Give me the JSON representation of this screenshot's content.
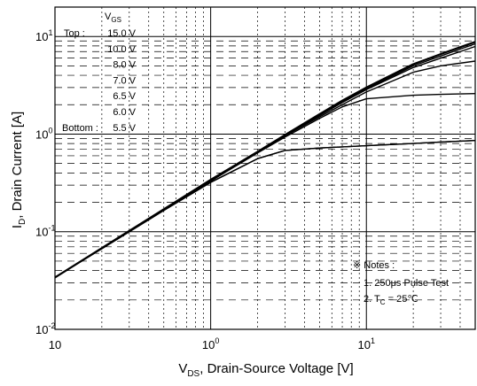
{
  "chart_data": {
    "type": "line",
    "xscale": "log",
    "yscale": "log",
    "xlim": [
      0.1,
      50
    ],
    "ylim": [
      0.01,
      20
    ],
    "grid": true,
    "xlabel": {
      "main": "V",
      "sub": "DS",
      "rest": ", Drain-Source Voltage [V]"
    },
    "ylabel": {
      "main": "I",
      "sub": "D",
      "rest": ", Drain Current [A]"
    },
    "x_ticks": [
      {
        "value": 0.1,
        "base": "10",
        "exp": ""
      },
      {
        "value": 1,
        "base": "10",
        "exp": "0"
      },
      {
        "value": 10,
        "base": "10",
        "exp": "1"
      }
    ],
    "y_ticks": [
      {
        "value": 0.01,
        "base": "10",
        "exp": "-2"
      },
      {
        "value": 0.1,
        "base": "10",
        "exp": "-1"
      },
      {
        "value": 1,
        "base": "10",
        "exp": "0"
      },
      {
        "value": 10,
        "base": "10",
        "exp": "1"
      }
    ],
    "legend": {
      "placement": "top-left",
      "header_main": "V",
      "header_sub": "GS",
      "top_label": "Top :",
      "bottom_label": "Bottom :",
      "entries": [
        "15.0 V",
        "10.0 V",
        "8.0 V",
        "7.0 V",
        "6.5 V",
        "6.0 V",
        "5.5 V"
      ]
    },
    "notes": {
      "title": "※ Notes :",
      "line1": "1. 250μs Pulse Test",
      "line2_prefix": "2. T",
      "line2_sub": "C",
      "line2_rest": " = 25℃"
    },
    "series": [
      {
        "values": [
          [
            0.1,
            0.034
          ],
          [
            0.2,
            0.068
          ],
          [
            0.5,
            0.17
          ],
          [
            1,
            0.34
          ],
          [
            2,
            0.66
          ],
          [
            3,
            0.98
          ],
          [
            5,
            1.6
          ],
          [
            7,
            2.2
          ],
          [
            10,
            3.0
          ],
          [
            20,
            5.2
          ],
          [
            30,
            6.6
          ],
          [
            50,
            8.8
          ]
        ]
      },
      {
        "values": [
          [
            0.1,
            0.034
          ],
          [
            0.2,
            0.068
          ],
          [
            0.5,
            0.17
          ],
          [
            1,
            0.34
          ],
          [
            2,
            0.66
          ],
          [
            3,
            0.98
          ],
          [
            5,
            1.58
          ],
          [
            7,
            2.15
          ],
          [
            10,
            2.9
          ],
          [
            20,
            5.0
          ],
          [
            30,
            6.3
          ],
          [
            50,
            8.4
          ]
        ]
      },
      {
        "values": [
          [
            0.1,
            0.034
          ],
          [
            0.2,
            0.068
          ],
          [
            0.5,
            0.17
          ],
          [
            1,
            0.34
          ],
          [
            2,
            0.66
          ],
          [
            3,
            0.97
          ],
          [
            5,
            1.55
          ],
          [
            7,
            2.1
          ],
          [
            10,
            2.85
          ],
          [
            20,
            4.8
          ],
          [
            30,
            6.0
          ],
          [
            50,
            7.9
          ]
        ]
      },
      {
        "values": [
          [
            0.1,
            0.034
          ],
          [
            0.2,
            0.068
          ],
          [
            0.5,
            0.17
          ],
          [
            1,
            0.34
          ],
          [
            2,
            0.65
          ],
          [
            3,
            0.96
          ],
          [
            5,
            1.5
          ],
          [
            7,
            2.0
          ],
          [
            10,
            2.7
          ],
          [
            20,
            4.3
          ],
          [
            30,
            5.0
          ],
          [
            50,
            5.6
          ]
        ]
      },
      {
        "values": [
          [
            0.1,
            0.034
          ],
          [
            0.2,
            0.068
          ],
          [
            0.5,
            0.17
          ],
          [
            1,
            0.33
          ],
          [
            2,
            0.64
          ],
          [
            3,
            0.93
          ],
          [
            5,
            1.45
          ],
          [
            7,
            1.9
          ],
          [
            10,
            2.3
          ],
          [
            20,
            2.5
          ],
          [
            30,
            2.55
          ],
          [
            50,
            2.6
          ]
        ]
      },
      {
        "values": [
          [
            0.1,
            0.034
          ],
          [
            0.2,
            0.067
          ],
          [
            0.5,
            0.165
          ],
          [
            1,
            0.32
          ],
          [
            2,
            0.56
          ],
          [
            3,
            0.68
          ],
          [
            5,
            0.72
          ],
          [
            7,
            0.74
          ],
          [
            10,
            0.76
          ],
          [
            20,
            0.8
          ],
          [
            30,
            0.83
          ],
          [
            50,
            0.86
          ]
        ]
      },
      {
        "values": [
          [
            0.1,
            0.034
          ],
          [
            0.2,
            0.067
          ],
          [
            0.5,
            0.165
          ],
          [
            1,
            0.32
          ],
          [
            2,
            0.56
          ],
          [
            3,
            0.68
          ],
          [
            5,
            0.72
          ],
          [
            7,
            0.74
          ],
          [
            10,
            0.76
          ],
          [
            20,
            0.8
          ],
          [
            30,
            0.83
          ],
          [
            50,
            0.86
          ]
        ]
      }
    ]
  }
}
